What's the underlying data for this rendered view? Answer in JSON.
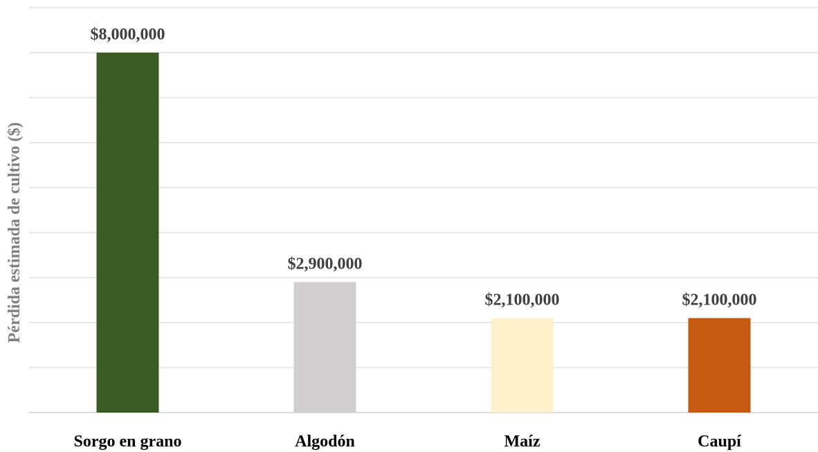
{
  "chart_data": {
    "type": "bar",
    "title": "",
    "xlabel": "",
    "ylabel": "Pérdida estimada de cultivo ($)",
    "categories": [
      "Sorgo en grano",
      "Algodón",
      "Maíz",
      "Caupí"
    ],
    "values": [
      8000000,
      2900000,
      2100000,
      2100000
    ],
    "data_labels": [
      "$8,000,000",
      "$2,900,000",
      "$2,100,000",
      "$2,100,000"
    ],
    "bar_colors": [
      "#3c5a24",
      "#d0cece",
      "#fff2cc",
      "#c55a11"
    ],
    "ylim": [
      0,
      9000000
    ],
    "ytick_step": 1000000,
    "grid": true,
    "y_tick_labels_visible": false,
    "legend": "none"
  }
}
